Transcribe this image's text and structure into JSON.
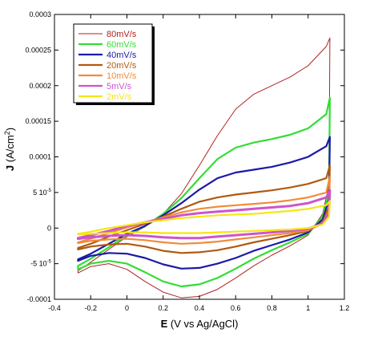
{
  "chart_data": {
    "type": "line",
    "xlabel_bold": "E",
    "xlabel_rest": " (V vs Ag/AgCl)",
    "ylabel_bold": "J",
    "ylabel_rest": " (A/cm",
    "ylabel_sup": "2",
    "ylabel_end": ")",
    "xlim": [
      -0.4,
      1.2
    ],
    "ylim": [
      -0.0001,
      0.0003
    ],
    "x_ticks": [
      {
        "v": -0.4,
        "label": "-0.4"
      },
      {
        "v": -0.2,
        "label": "-0.2"
      },
      {
        "v": 0,
        "label": "0"
      },
      {
        "v": 0.2,
        "label": "0.2"
      },
      {
        "v": 0.4,
        "label": "0.4"
      },
      {
        "v": 0.6,
        "label": "0.6"
      },
      {
        "v": 0.8,
        "label": "0.8"
      },
      {
        "v": 1.0,
        "label": "1"
      },
      {
        "v": 1.2,
        "label": "1.2"
      }
    ],
    "y_ticks": [
      {
        "v": -0.0001,
        "label": "-0.0001"
      },
      {
        "v": -5e-05,
        "label": "-5 10",
        "sup": "-5"
      },
      {
        "v": 0,
        "label": "0"
      },
      {
        "v": 5e-05,
        "label": "5 10",
        "sup": "-5"
      },
      {
        "v": 0.0001,
        "label": "0.0001"
      },
      {
        "v": 0.00015,
        "label": "0.00015"
      },
      {
        "v": 0.0002,
        "label": "0.0002"
      },
      {
        "v": 0.00025,
        "label": "0.00025"
      },
      {
        "v": 0.0003,
        "label": "0.0003"
      }
    ],
    "grid": false,
    "legend_position": "top-left",
    "series": [
      {
        "name": "80mV/s",
        "color": "#b22222",
        "width": 1.0,
        "forward": [
          [
            -0.27,
            -6e-05
          ],
          [
            -0.2,
            -4.8e-05
          ],
          [
            -0.1,
            -3e-05
          ],
          [
            0.0,
            -1.2e-05
          ],
          [
            0.1,
            2e-06
          ],
          [
            0.2,
            2e-05
          ],
          [
            0.3,
            4.8e-05
          ],
          [
            0.4,
            8.8e-05
          ],
          [
            0.5,
            0.00013
          ],
          [
            0.6,
            0.000167
          ],
          [
            0.7,
            0.000188
          ],
          [
            0.8,
            0.0002
          ],
          [
            0.9,
            0.000212
          ],
          [
            1.0,
            0.000228
          ],
          [
            1.1,
            0.000255
          ],
          [
            1.12,
            0.000267
          ]
        ],
        "reverse": [
          [
            1.12,
            0.000267
          ],
          [
            1.115,
            6e-05
          ],
          [
            1.08,
            2e-05
          ],
          [
            1.0,
            -1e-05
          ],
          [
            0.9,
            -2.5e-05
          ],
          [
            0.8,
            -3.8e-05
          ],
          [
            0.7,
            -5.3e-05
          ],
          [
            0.6,
            -7e-05
          ],
          [
            0.5,
            -8.6e-05
          ],
          [
            0.4,
            -9.6e-05
          ],
          [
            0.3,
            -9.8e-05
          ],
          [
            0.2,
            -9e-05
          ],
          [
            0.1,
            -7.5e-05
          ],
          [
            0.0,
            -5.8e-05
          ],
          [
            -0.1,
            -5e-05
          ],
          [
            -0.2,
            -5.4e-05
          ],
          [
            -0.27,
            -6.3e-05
          ]
        ]
      },
      {
        "name": "60mV/s",
        "color": "#33dd33",
        "width": 2.2,
        "forward": [
          [
            -0.27,
            -5.3e-05
          ],
          [
            -0.2,
            -4.3e-05
          ],
          [
            -0.1,
            -2.7e-05
          ],
          [
            0.0,
            -1e-05
          ],
          [
            0.1,
            3e-06
          ],
          [
            0.2,
            2e-05
          ],
          [
            0.3,
            4.2e-05
          ],
          [
            0.4,
            7e-05
          ],
          [
            0.5,
            9.7e-05
          ],
          [
            0.6,
            0.000113
          ],
          [
            0.7,
            0.00012
          ],
          [
            0.8,
            0.000125
          ],
          [
            0.9,
            0.000131
          ],
          [
            1.0,
            0.00014
          ],
          [
            1.1,
            0.00016
          ],
          [
            1.12,
            0.000183
          ]
        ],
        "reverse": [
          [
            1.12,
            0.000183
          ],
          [
            1.115,
            5e-05
          ],
          [
            1.08,
            1.6e-05
          ],
          [
            1.0,
            -8e-06
          ],
          [
            0.9,
            -2e-05
          ],
          [
            0.8,
            -3.1e-05
          ],
          [
            0.7,
            -4.3e-05
          ],
          [
            0.6,
            -5.7e-05
          ],
          [
            0.5,
            -7e-05
          ],
          [
            0.4,
            -7.9e-05
          ],
          [
            0.3,
            -8.2e-05
          ],
          [
            0.2,
            -7.5e-05
          ],
          [
            0.1,
            -6.2e-05
          ],
          [
            0.0,
            -5e-05
          ],
          [
            -0.1,
            -4.6e-05
          ],
          [
            -0.2,
            -5e-05
          ],
          [
            -0.27,
            -5.8e-05
          ]
        ]
      },
      {
        "name": "40mV/s",
        "color": "#1a1aa8",
        "width": 2.2,
        "forward": [
          [
            -0.27,
            -4.4e-05
          ],
          [
            -0.2,
            -3.6e-05
          ],
          [
            -0.1,
            -2.2e-05
          ],
          [
            0.0,
            -8e-06
          ],
          [
            0.1,
            3e-06
          ],
          [
            0.2,
            1.8e-05
          ],
          [
            0.3,
            3.5e-05
          ],
          [
            0.4,
            5.4e-05
          ],
          [
            0.5,
            7e-05
          ],
          [
            0.6,
            7.8e-05
          ],
          [
            0.7,
            8.2e-05
          ],
          [
            0.8,
            8.6e-05
          ],
          [
            0.9,
            9.2e-05
          ],
          [
            1.0,
            0.0001
          ],
          [
            1.1,
            0.000115
          ],
          [
            1.12,
            0.000128
          ]
        ],
        "reverse": [
          [
            1.12,
            0.000128
          ],
          [
            1.115,
            4e-05
          ],
          [
            1.08,
            1.2e-05
          ],
          [
            1.0,
            -6e-06
          ],
          [
            0.9,
            -1.6e-05
          ],
          [
            0.8,
            -2.4e-05
          ],
          [
            0.7,
            -3.2e-05
          ],
          [
            0.6,
            -4.2e-05
          ],
          [
            0.5,
            -5e-05
          ],
          [
            0.4,
            -5.6e-05
          ],
          [
            0.3,
            -5.7e-05
          ],
          [
            0.2,
            -5.1e-05
          ],
          [
            0.1,
            -4.2e-05
          ],
          [
            0.0,
            -3.6e-05
          ],
          [
            -0.1,
            -3.5e-05
          ],
          [
            -0.2,
            -3.9e-05
          ],
          [
            -0.27,
            -4.6e-05
          ]
        ]
      },
      {
        "name": "20mV/s",
        "color": "#b05a10",
        "width": 2.2,
        "forward": [
          [
            -0.27,
            -2.8e-05
          ],
          [
            -0.2,
            -2.2e-05
          ],
          [
            -0.1,
            -1.2e-05
          ],
          [
            0.0,
            -3e-06
          ],
          [
            0.1,
            6e-06
          ],
          [
            0.2,
            1.6e-05
          ],
          [
            0.3,
            2.7e-05
          ],
          [
            0.4,
            3.7e-05
          ],
          [
            0.5,
            4.3e-05
          ],
          [
            0.6,
            4.7e-05
          ],
          [
            0.7,
            5e-05
          ],
          [
            0.8,
            5.3e-05
          ],
          [
            0.9,
            5.7e-05
          ],
          [
            1.0,
            6.2e-05
          ],
          [
            1.1,
            7e-05
          ],
          [
            1.12,
            8.8e-05
          ]
        ],
        "reverse": [
          [
            1.12,
            8.8e-05
          ],
          [
            1.115,
            3e-05
          ],
          [
            1.08,
            8e-06
          ],
          [
            1.0,
            -4e-06
          ],
          [
            0.9,
            -1e-05
          ],
          [
            0.8,
            -1.5e-05
          ],
          [
            0.7,
            -2e-05
          ],
          [
            0.6,
            -2.6e-05
          ],
          [
            0.5,
            -3.1e-05
          ],
          [
            0.4,
            -3.4e-05
          ],
          [
            0.3,
            -3.5e-05
          ],
          [
            0.2,
            -3.2e-05
          ],
          [
            0.1,
            -2.6e-05
          ],
          [
            0.0,
            -2.2e-05
          ],
          [
            -0.1,
            -2.3e-05
          ],
          [
            -0.2,
            -2.6e-05
          ],
          [
            -0.27,
            -3e-05
          ]
        ]
      },
      {
        "name": "10mV/s",
        "color": "#f08c3c",
        "width": 2.2,
        "forward": [
          [
            -0.27,
            -2e-05
          ],
          [
            -0.2,
            -1.5e-05
          ],
          [
            -0.1,
            -7e-06
          ],
          [
            0.0,
            1e-06
          ],
          [
            0.1,
            8e-06
          ],
          [
            0.2,
            1.5e-05
          ],
          [
            0.3,
            2.2e-05
          ],
          [
            0.4,
            2.7e-05
          ],
          [
            0.5,
            3e-05
          ],
          [
            0.6,
            3.2e-05
          ],
          [
            0.7,
            3.4e-05
          ],
          [
            0.8,
            3.6e-05
          ],
          [
            0.9,
            3.9e-05
          ],
          [
            1.0,
            4.3e-05
          ],
          [
            1.1,
            5e-05
          ],
          [
            1.12,
            7.2e-05
          ]
        ],
        "reverse": [
          [
            1.12,
            7.2e-05
          ],
          [
            1.115,
            2.5e-05
          ],
          [
            1.08,
            6e-06
          ],
          [
            1.0,
            -3e-06
          ],
          [
            0.9,
            -7e-06
          ],
          [
            0.8,
            -1e-05
          ],
          [
            0.7,
            -1.3e-05
          ],
          [
            0.6,
            -1.6e-05
          ],
          [
            0.5,
            -1.9e-05
          ],
          [
            0.4,
            -2.1e-05
          ],
          [
            0.3,
            -2.2e-05
          ],
          [
            0.2,
            -2e-05
          ],
          [
            0.1,
            -1.7e-05
          ],
          [
            0.0,
            -1.5e-05
          ],
          [
            -0.1,
            -1.6e-05
          ],
          [
            -0.2,
            -1.8e-05
          ],
          [
            -0.27,
            -2.1e-05
          ]
        ]
      },
      {
        "name": "5mV/s",
        "color": "#cc55cc",
        "width": 3.0,
        "forward": [
          [
            -0.27,
            -1.4e-05
          ],
          [
            -0.2,
            -1e-05
          ],
          [
            -0.1,
            -4e-06
          ],
          [
            0.0,
            3e-06
          ],
          [
            0.1,
            8e-06
          ],
          [
            0.2,
            1.3e-05
          ],
          [
            0.3,
            1.8e-05
          ],
          [
            0.4,
            2.1e-05
          ],
          [
            0.5,
            2.3e-05
          ],
          [
            0.6,
            2.5e-05
          ],
          [
            0.7,
            2.7e-05
          ],
          [
            0.8,
            2.9e-05
          ],
          [
            0.9,
            3.1e-05
          ],
          [
            1.0,
            3.5e-05
          ],
          [
            1.1,
            4.3e-05
          ],
          [
            1.12,
            5.3e-05
          ]
        ],
        "reverse": [
          [
            1.12,
            5.3e-05
          ],
          [
            1.115,
            2.2e-05
          ],
          [
            1.08,
            6e-06
          ],
          [
            1.0,
            -1e-06
          ],
          [
            0.9,
            -4e-06
          ],
          [
            0.8,
            -6e-06
          ],
          [
            0.7,
            -8e-06
          ],
          [
            0.6,
            -1e-05
          ],
          [
            0.5,
            -1.2e-05
          ],
          [
            0.4,
            -1.4e-05
          ],
          [
            0.3,
            -1.4e-05
          ],
          [
            0.2,
            -1.3e-05
          ],
          [
            0.1,
            -1.1e-05
          ],
          [
            0.0,
            -1e-05
          ],
          [
            -0.1,
            -1.1e-05
          ],
          [
            -0.2,
            -1.3e-05
          ],
          [
            -0.27,
            -1.5e-05
          ]
        ]
      },
      {
        "name": "2mV/s",
        "color": "#f5e614",
        "width": 2.2,
        "forward": [
          [
            -0.27,
            -8e-06
          ],
          [
            -0.2,
            -5e-06
          ],
          [
            -0.1,
            0.0
          ],
          [
            0.0,
            4e-06
          ],
          [
            0.1,
            8e-06
          ],
          [
            0.2,
            1.1e-05
          ],
          [
            0.3,
            1.4e-05
          ],
          [
            0.4,
            1.6e-05
          ],
          [
            0.5,
            1.8e-05
          ],
          [
            0.6,
            1.9e-05
          ],
          [
            0.7,
            2e-05
          ],
          [
            0.8,
            2.2e-05
          ],
          [
            0.9,
            2.4e-05
          ],
          [
            1.0,
            2.7e-05
          ],
          [
            1.1,
            3.2e-05
          ],
          [
            1.12,
            3.8e-05
          ]
        ],
        "reverse": [
          [
            1.12,
            3.8e-05
          ],
          [
            1.115,
            1.6e-05
          ],
          [
            1.08,
            5e-06
          ],
          [
            1.0,
            0.0
          ],
          [
            0.9,
            -2e-06
          ],
          [
            0.8,
            -3e-06
          ],
          [
            0.7,
            -4e-06
          ],
          [
            0.6,
            -5e-06
          ],
          [
            0.5,
            -6e-06
          ],
          [
            0.4,
            -7e-06
          ],
          [
            0.3,
            -7e-06
          ],
          [
            0.2,
            -7e-06
          ],
          [
            0.1,
            -6e-06
          ],
          [
            0.0,
            -6e-06
          ],
          [
            -0.1,
            -7e-06
          ],
          [
            -0.2,
            -8e-06
          ],
          [
            -0.27,
            -9e-06
          ]
        ]
      }
    ]
  }
}
